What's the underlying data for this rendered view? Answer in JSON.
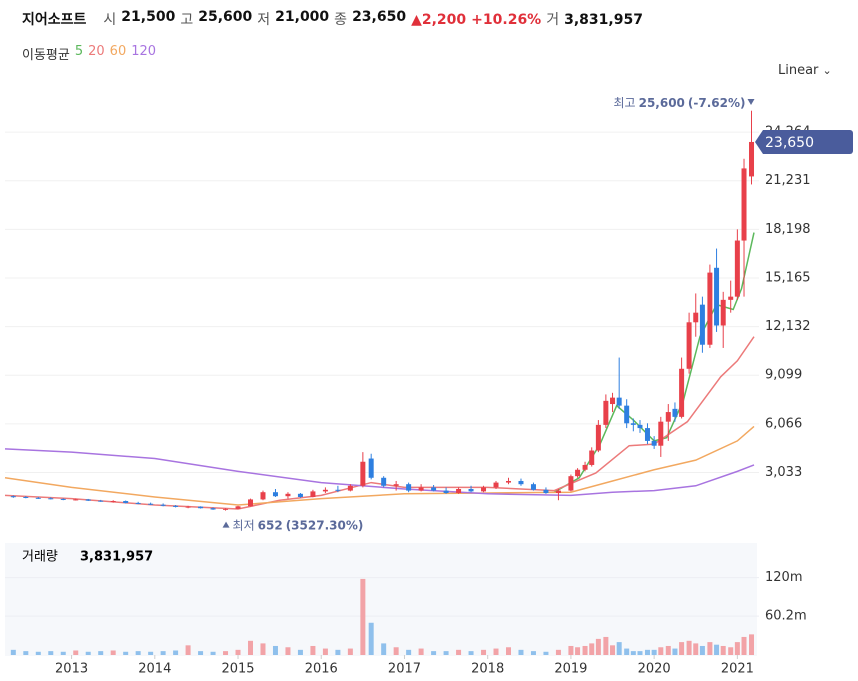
{
  "header": {
    "name": "지어소프트",
    "stats": [
      {
        "label": "시",
        "value": "21,500"
      },
      {
        "label": "고",
        "value": "25,600"
      },
      {
        "label": "저",
        "value": "21,000"
      },
      {
        "label": "종",
        "value": "23,650"
      }
    ],
    "change": "2,200",
    "change_pct": "+10.26%",
    "volume_label": "거",
    "volume": "3,831,957"
  },
  "scale_button": "Linear",
  "chart_data": [
    {
      "type": "candlestick",
      "legend_title": "이동평균",
      "x": [
        2012.3,
        2012.45,
        2012.6,
        2012.75,
        2012.9,
        2013.05,
        2013.2,
        2013.35,
        2013.5,
        2013.65,
        2013.8,
        2013.95,
        2014.1,
        2014.25,
        2014.4,
        2014.55,
        2014.7,
        2014.85,
        2015.0,
        2015.15,
        2015.3,
        2015.45,
        2015.6,
        2015.75,
        2015.9,
        2016.05,
        2016.2,
        2016.35,
        2016.5,
        2016.6,
        2016.75,
        2016.9,
        2017.05,
        2017.2,
        2017.35,
        2017.5,
        2017.65,
        2017.8,
        2017.95,
        2018.1,
        2018.25,
        2018.4,
        2018.55,
        2018.7,
        2018.85,
        2019.0,
        2019.08,
        2019.17,
        2019.25,
        2019.33,
        2019.42,
        2019.5,
        2019.58,
        2019.67,
        2019.75,
        2019.83,
        2019.92,
        2020.0,
        2020.08,
        2020.17,
        2020.25,
        2020.33,
        2020.42,
        2020.5,
        2020.58,
        2020.67,
        2020.75,
        2020.83,
        2020.92,
        2021.0,
        2021.08,
        2021.17
      ],
      "open": [
        1550,
        1500,
        1450,
        1420,
        1380,
        1330,
        1350,
        1270,
        1220,
        1250,
        1130,
        1080,
        1020,
        950,
        880,
        900,
        800,
        720,
        760,
        920,
        1350,
        1800,
        1550,
        1700,
        1500,
        1850,
        1950,
        1900,
        2200,
        3900,
        2700,
        2200,
        2300,
        1900,
        2100,
        1900,
        1750,
        2000,
        1850,
        2100,
        2400,
        2500,
        2300,
        1950,
        1750,
        1900,
        2800,
        3200,
        3500,
        4400,
        6000,
        7300,
        7700,
        7200,
        6100,
        6000,
        5800,
        5000,
        4700,
        6200,
        7000,
        6500,
        9500,
        12400,
        13500,
        11000,
        15800,
        12200,
        13800,
        14000,
        17500,
        21500
      ],
      "high": [
        1600,
        1560,
        1500,
        1480,
        1420,
        1400,
        1380,
        1320,
        1300,
        1280,
        1200,
        1150,
        1100,
        1000,
        950,
        920,
        850,
        800,
        950,
        1400,
        1900,
        2000,
        1800,
        1750,
        1950,
        2100,
        2200,
        2300,
        4300,
        4200,
        2800,
        2500,
        2400,
        2300,
        2250,
        2100,
        2100,
        2200,
        2200,
        2500,
        2700,
        2650,
        2400,
        2100,
        2000,
        2900,
        3300,
        3700,
        4600,
        6300,
        7900,
        8000,
        10200,
        7600,
        6400,
        6300,
        6100,
        5300,
        6500,
        7300,
        7400,
        10200,
        13000,
        14200,
        14000,
        16000,
        17000,
        14300,
        15000,
        18200,
        22600,
        25600
      ],
      "low": [
        1450,
        1420,
        1380,
        1350,
        1300,
        1280,
        1250,
        1200,
        1150,
        1100,
        1050,
        1000,
        920,
        850,
        800,
        780,
        700,
        652,
        740,
        900,
        1300,
        1500,
        1400,
        1450,
        1480,
        1750,
        1800,
        1850,
        2100,
        2600,
        2100,
        1900,
        1800,
        1850,
        1850,
        1700,
        1700,
        1800,
        1800,
        2000,
        2300,
        2200,
        1900,
        1700,
        1300,
        1850,
        2700,
        3100,
        3400,
        4300,
        5800,
        6800,
        7000,
        5800,
        5600,
        5500,
        4800,
        4500,
        4000,
        5000,
        6200,
        6400,
        9200,
        11500,
        10500,
        10800,
        11800,
        10800,
        13000,
        13800,
        14000,
        21000
      ],
      "close": [
        1500,
        1450,
        1420,
        1380,
        1330,
        1350,
        1270,
        1220,
        1250,
        1130,
        1080,
        1020,
        950,
        880,
        900,
        800,
        720,
        760,
        920,
        1350,
        1800,
        1550,
        1700,
        1500,
        1850,
        1950,
        1900,
        2200,
        3700,
        2700,
        2200,
        2300,
        1900,
        2100,
        1900,
        1750,
        2000,
        1850,
        2100,
        2400,
        2500,
        2300,
        1950,
        1750,
        1900,
        2800,
        3200,
        3500,
        4400,
        6000,
        7500,
        7700,
        7200,
        6100,
        6000,
        5800,
        5000,
        4700,
        6200,
        6800,
        6500,
        9500,
        12400,
        13000,
        11000,
        15500,
        12200,
        13800,
        14000,
        17500,
        22000,
        23650
      ],
      "up_color": "#e8404a",
      "down_color": "#2e7fe0",
      "xlim": [
        2012.2,
        2021.26
      ],
      "ylim": [
        -870,
        26580
      ],
      "yticks": [
        {
          "value": 3033,
          "label": "3,033"
        },
        {
          "value": 6066,
          "label": "6,066"
        },
        {
          "value": 9099,
          "label": "9,099"
        },
        {
          "value": 12132,
          "label": "12,132"
        },
        {
          "value": 15165,
          "label": "15,165"
        },
        {
          "value": 18198,
          "label": "18,198"
        },
        {
          "value": 21231,
          "label": "21,231"
        },
        {
          "value": 24264,
          "label": "24,264"
        }
      ],
      "grid": true,
      "lines": [
        {
          "name": "5",
          "color": "#5cb85c",
          "x": [
            2018.8,
            2019.1,
            2019.35,
            2019.55,
            2019.75,
            2020.0,
            2020.15,
            2020.35,
            2020.55,
            2020.75,
            2020.95,
            2021.05,
            2021.2
          ],
          "values": [
            1800,
            2700,
            4800,
            7200,
            6300,
            5000,
            5200,
            7500,
            11500,
            13500,
            13200,
            14500,
            18000
          ]
        },
        {
          "name": "20",
          "color": "#ec7a7a",
          "x": [
            2012.2,
            2013,
            2014,
            2015,
            2015.5,
            2016,
            2016.6,
            2017,
            2018,
            2018.8,
            2019.3,
            2019.7,
            2020,
            2020.4,
            2020.8,
            2021,
            2021.2
          ],
          "values": [
            1600,
            1400,
            1000,
            750,
            1300,
            1600,
            2400,
            2100,
            2100,
            1900,
            3000,
            4700,
            4800,
            6200,
            9000,
            10000,
            11500
          ]
        },
        {
          "name": "60",
          "color": "#f2a860",
          "x": [
            2012.2,
            2013,
            2014,
            2015,
            2016,
            2017,
            2018,
            2019,
            2019.5,
            2020,
            2020.5,
            2021,
            2021.2
          ],
          "values": [
            2700,
            2100,
            1500,
            1000,
            1400,
            1700,
            1750,
            1800,
            2500,
            3200,
            3800,
            5000,
            5900
          ]
        },
        {
          "name": "120",
          "color": "#a874e0",
          "x": [
            2012.2,
            2013,
            2014,
            2015,
            2016,
            2017,
            2018,
            2019,
            2019.5,
            2020,
            2020.5,
            2021,
            2021.2
          ],
          "values": [
            4500,
            4300,
            3900,
            3100,
            2400,
            2000,
            1700,
            1600,
            1800,
            1900,
            2200,
            3100,
            3500
          ]
        }
      ],
      "annotations": {
        "high": {
          "label": "최고",
          "value": "25,600",
          "change": "(-7.62%)"
        },
        "low": {
          "label": "최저",
          "value": "652",
          "change": "(3527.30%)"
        },
        "last": "23,650"
      }
    },
    {
      "type": "bar",
      "title": "거래량",
      "latest": "3,831,957",
      "x": [
        2012.3,
        2012.45,
        2012.6,
        2012.75,
        2012.9,
        2013.05,
        2013.2,
        2013.35,
        2013.5,
        2013.65,
        2013.8,
        2013.95,
        2014.1,
        2014.25,
        2014.4,
        2014.55,
        2014.7,
        2014.85,
        2015.0,
        2015.15,
        2015.3,
        2015.45,
        2015.6,
        2015.75,
        2015.9,
        2016.05,
        2016.2,
        2016.35,
        2016.5,
        2016.6,
        2016.75,
        2016.9,
        2017.05,
        2017.2,
        2017.35,
        2017.5,
        2017.65,
        2017.8,
        2017.95,
        2018.1,
        2018.25,
        2018.4,
        2018.55,
        2018.7,
        2018.85,
        2019.0,
        2019.08,
        2019.17,
        2019.25,
        2019.33,
        2019.42,
        2019.5,
        2019.58,
        2019.67,
        2019.75,
        2019.83,
        2019.92,
        2020.0,
        2020.08,
        2020.17,
        2020.25,
        2020.33,
        2020.42,
        2020.5,
        2020.58,
        2020.67,
        2020.75,
        2020.83,
        2020.92,
        2021.0,
        2021.08,
        2021.17
      ],
      "values": [
        8000000,
        6000000,
        5000000,
        6000000,
        5000000,
        7000000,
        5000000,
        6000000,
        7000000,
        5000000,
        6000000,
        5000000,
        6000000,
        7000000,
        15000000,
        6000000,
        5000000,
        6000000,
        8000000,
        22000000,
        18000000,
        14000000,
        12000000,
        8000000,
        14000000,
        10000000,
        8000000,
        10000000,
        118000000,
        50000000,
        18000000,
        12000000,
        8000000,
        10000000,
        6000000,
        6000000,
        8000000,
        6000000,
        8000000,
        10000000,
        12000000,
        8000000,
        6000000,
        5000000,
        8000000,
        14000000,
        12000000,
        14000000,
        18000000,
        25000000,
        28000000,
        15000000,
        20000000,
        10000000,
        6000000,
        6000000,
        8000000,
        8000000,
        12000000,
        14000000,
        10000000,
        20000000,
        22000000,
        18000000,
        14000000,
        20000000,
        16000000,
        14000000,
        12000000,
        20000000,
        28000000,
        32000000
      ],
      "up_color": "#f2a3a7",
      "down_color": "#8fc0ec",
      "xlim": [
        2012.2,
        2021.26
      ],
      "ylim": [
        0,
        173700000
      ],
      "yticks": [
        {
          "value": 60200000,
          "label": "60.2m"
        },
        {
          "value": 120000000,
          "label": "120m"
        }
      ],
      "xticks": [
        2013,
        2014,
        2015,
        2016,
        2017,
        2018,
        2019,
        2020,
        2021
      ]
    }
  ]
}
